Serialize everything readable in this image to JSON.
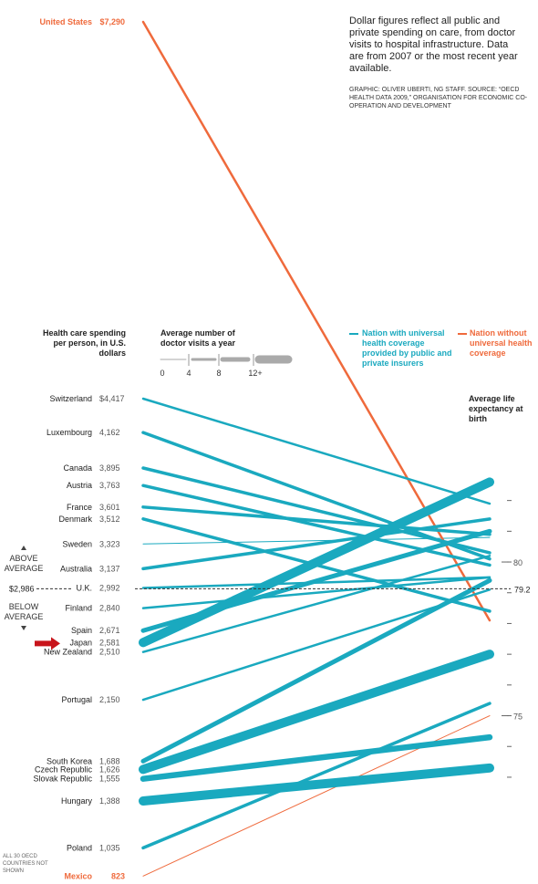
{
  "note": "Dollar figures reflect all public and private spending on care, from doctor visits to hospital infrastructure. Data are from 2007 or the most recent year available.",
  "credit": "GRAPHIC: OLIVER UBERTI, NG STAFF. SOURCE: “OECD HEALTH DATA 2009,” ORGANISATION FOR ECONOMIC CO-OPERATION AND DEVELOPMENT",
  "left_header": "Health care spending per person, in U.S. dollars",
  "visits_header": "Average number of doctor visits a year",
  "visits_ticks": [
    "0",
    "4",
    "8",
    "12+"
  ],
  "legend_universal": "Nation with universal health coverage provided by public and private insurers",
  "legend_without": "Nation without universal health coverage",
  "right_header": "Average life expectancy at birth",
  "above_average": "ABOVE AVERAGE",
  "below_average": "BELOW AVERAGE",
  "average_spending_label": "$2,986",
  "average_life_label": "79.2",
  "footnote": "ALL 30 OECD COUNTRIES NOT SHOWN",
  "colors": {
    "universal": "#1aa9bf",
    "without": "#ef6a3c",
    "avg_line": "#333333",
    "arrow": "#c8141b",
    "text": "#222222"
  },
  "chart_data": {
    "type": "slope",
    "left_axis": "Health care spending per person (U.S. dollars)",
    "right_axis": "Average life expectancy at birth",
    "right_ticks": [
      75,
      80
    ],
    "spending_average": 2986,
    "life_average": 79.2,
    "series": [
      {
        "name": "United States",
        "spending_label": "$7,290",
        "spending": 7290,
        "life": 78.1,
        "visits": 4,
        "universal": false
      },
      {
        "name": "Switzerland",
        "spending_label": "$4,417",
        "spending": 4417,
        "life": 81.9,
        "visits": 4,
        "universal": true
      },
      {
        "name": "Luxembourg",
        "spending_label": "4,162",
        "spending": 4162,
        "life": 80.1,
        "visits": 6,
        "universal": true
      },
      {
        "name": "Canada",
        "spending_label": "3,895",
        "spending": 3895,
        "life": 80.3,
        "visits": 6,
        "universal": true
      },
      {
        "name": "Austria",
        "spending_label": "3,763",
        "spending": 3763,
        "life": 79.9,
        "visits": 6,
        "universal": true
      },
      {
        "name": "France",
        "spending_label": "3,601",
        "spending": 3601,
        "life": 80.9,
        "visits": 6,
        "universal": true
      },
      {
        "name": "Denmark",
        "spending_label": "3,512",
        "spending": 3512,
        "life": 78.4,
        "visits": 6,
        "universal": true
      },
      {
        "name": "Sweden",
        "spending_label": "3,323",
        "spending": 3323,
        "life": 80.8,
        "visits": 3,
        "universal": true
      },
      {
        "name": "Australia",
        "spending_label": "3,137",
        "spending": 3137,
        "life": 81.4,
        "visits": 6,
        "universal": true
      },
      {
        "name": "U.K.",
        "spending_label": "2,992",
        "spending": 2992,
        "life": 79.5,
        "visits": 5,
        "universal": true
      },
      {
        "name": "Finland",
        "spending_label": "2,840",
        "spending": 2840,
        "life": 79.5,
        "visits": 4,
        "universal": true
      },
      {
        "name": "Spain",
        "spending_label": "2,671",
        "spending": 2671,
        "life": 81.0,
        "visits": 8,
        "universal": true
      },
      {
        "name": "Japan",
        "spending_label": "2,581",
        "spending": 2581,
        "life": 82.6,
        "visits": 13,
        "universal": true
      },
      {
        "name": "New Zealand",
        "spending_label": "2,510",
        "spending": 2510,
        "life": 80.2,
        "visits": 4,
        "universal": true
      },
      {
        "name": "Portugal",
        "spending_label": "2,150",
        "spending": 2150,
        "life": 79.1,
        "visits": 4,
        "universal": true
      },
      {
        "name": "South Korea",
        "spending_label": "1,688",
        "spending": 1688,
        "life": 79.4,
        "visits": 8,
        "universal": true
      },
      {
        "name": "Czech Republic",
        "spending_label": "1,626",
        "spending": 1626,
        "life": 77.0,
        "visits": 13,
        "universal": true
      },
      {
        "name": "Slovak Republic",
        "spending_label": "1,555",
        "spending": 1555,
        "life": 74.3,
        "visits": 11,
        "universal": true
      },
      {
        "name": "Hungary",
        "spending_label": "1,388",
        "spending": 1388,
        "life": 73.3,
        "visits": 13,
        "universal": true
      },
      {
        "name": "Poland",
        "spending_label": "1,035",
        "spending": 1035,
        "life": 75.4,
        "visits": 7,
        "universal": true
      },
      {
        "name": "Mexico",
        "spending_label": "823",
        "spending": 823,
        "life": 75.0,
        "visits": 3,
        "universal": false
      }
    ]
  }
}
